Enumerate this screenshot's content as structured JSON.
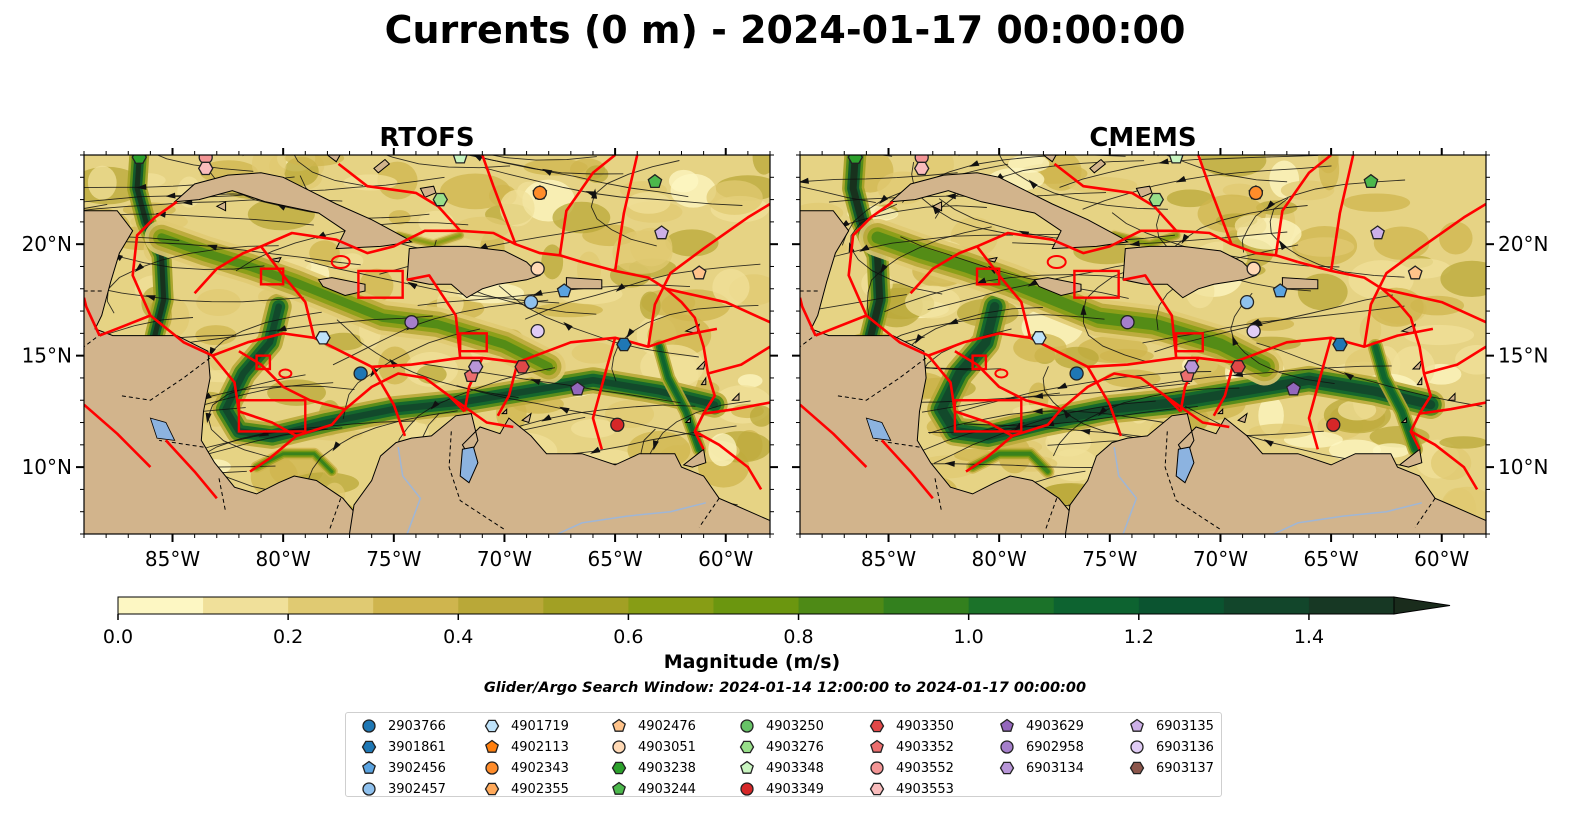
{
  "figure": {
    "title": "Currents (0 m) - 2024-01-17 00:00:00",
    "search_window": "Glider/Argo Search Window: 2024-01-14 12:00:00 to 2024-01-17 00:00:00"
  },
  "colors": {
    "land": "#d2b48c",
    "boundaries": "#ff0000",
    "water_lakes": "#8cb3e0",
    "rivers": "#9fb6d6",
    "colormap": [
      "#fdf7c3",
      "#f0e09a",
      "#e0ca72",
      "#cfb54e",
      "#b9a838",
      "#a2a024",
      "#879d15",
      "#6b960f",
      "#4e8a16",
      "#33801e",
      "#1b7229",
      "#0d6330",
      "#0b5430",
      "#12462b",
      "#173824",
      "#1a2c1c"
    ]
  },
  "maps": [
    {
      "title": "RTOFS",
      "lon_range": [
        -89,
        -58
      ],
      "lat_range": [
        7,
        24
      ],
      "lon_ticks": [
        "85°W",
        "80°W",
        "75°W",
        "70°W",
        "65°W",
        "60°W"
      ],
      "lat_ticks": [
        "10°N",
        "15°N",
        "20°N"
      ],
      "lat_labels_side": "left",
      "markers": [
        {
          "id": "2903766",
          "lon": -76.5,
          "lat": 14.2
        },
        {
          "id": "3901861",
          "lon": -64.6,
          "lat": 15.5
        },
        {
          "id": "3902456",
          "lon": -67.3,
          "lat": 17.9
        },
        {
          "id": "3902457",
          "lon": -68.8,
          "lat": 17.4
        },
        {
          "id": "4901719",
          "lon": -78.2,
          "lat": 15.8
        },
        {
          "id": "4902113",
          "lon": -68.4,
          "lat": 22.3
        },
        {
          "id": "4902343",
          "lon": -68.4,
          "lat": 22.3
        },
        {
          "id": "4902476",
          "lon": -61.2,
          "lat": 18.7
        },
        {
          "id": "4903051",
          "lon": -68.5,
          "lat": 18.9
        },
        {
          "id": "4903238",
          "lon": -86.5,
          "lat": 23.9
        },
        {
          "id": "4903244",
          "lon": -63.2,
          "lat": 22.8
        },
        {
          "id": "4903276",
          "lon": -72.9,
          "lat": 22.0
        },
        {
          "id": "4903348",
          "lon": -72.0,
          "lat": 23.9
        },
        {
          "id": "4903349",
          "lon": -64.9,
          "lat": 11.9
        },
        {
          "id": "4903350",
          "lon": -69.2,
          "lat": 14.5
        },
        {
          "id": "4903352",
          "lon": -71.5,
          "lat": 14.1
        },
        {
          "id": "4903552",
          "lon": -83.5,
          "lat": 23.9
        },
        {
          "id": "4903553",
          "lon": -83.5,
          "lat": 23.4
        },
        {
          "id": "4903629",
          "lon": -66.7,
          "lat": 13.5
        },
        {
          "id": "6902958",
          "lon": -74.2,
          "lat": 16.5
        },
        {
          "id": "6903134",
          "lon": -71.3,
          "lat": 14.5
        },
        {
          "id": "6903135",
          "lon": -62.9,
          "lat": 20.5
        },
        {
          "id": "6903136",
          "lon": -68.5,
          "lat": 16.1
        }
      ]
    },
    {
      "title": "CMEMS",
      "lon_range": [
        -89,
        -58
      ],
      "lat_range": [
        7,
        24
      ],
      "lon_ticks": [
        "85°W",
        "80°W",
        "75°W",
        "70°W",
        "65°W",
        "60°W"
      ],
      "lat_ticks": [
        "10°N",
        "15°N",
        "20°N"
      ],
      "lat_labels_side": "right",
      "markers": [
        {
          "id": "2903766",
          "lon": -76.5,
          "lat": 14.2
        },
        {
          "id": "3901861",
          "lon": -64.6,
          "lat": 15.5
        },
        {
          "id": "3902456",
          "lon": -67.3,
          "lat": 17.9
        },
        {
          "id": "3902457",
          "lon": -68.8,
          "lat": 17.4
        },
        {
          "id": "4901719",
          "lon": -78.2,
          "lat": 15.8
        },
        {
          "id": "4902113",
          "lon": -68.4,
          "lat": 22.3
        },
        {
          "id": "4902343",
          "lon": -68.4,
          "lat": 22.3
        },
        {
          "id": "4902476",
          "lon": -61.2,
          "lat": 18.7
        },
        {
          "id": "4903051",
          "lon": -68.5,
          "lat": 18.9
        },
        {
          "id": "4903238",
          "lon": -86.5,
          "lat": 23.9
        },
        {
          "id": "4903244",
          "lon": -63.2,
          "lat": 22.8
        },
        {
          "id": "4903276",
          "lon": -72.9,
          "lat": 22.0
        },
        {
          "id": "4903348",
          "lon": -72.0,
          "lat": 23.9
        },
        {
          "id": "4903349",
          "lon": -64.9,
          "lat": 11.9
        },
        {
          "id": "4903350",
          "lon": -69.2,
          "lat": 14.5
        },
        {
          "id": "4903352",
          "lon": -71.5,
          "lat": 14.1
        },
        {
          "id": "4903552",
          "lon": -83.5,
          "lat": 23.9
        },
        {
          "id": "4903553",
          "lon": -83.5,
          "lat": 23.4
        },
        {
          "id": "4903629",
          "lon": -66.7,
          "lat": 13.5
        },
        {
          "id": "6902958",
          "lon": -74.2,
          "lat": 16.5
        },
        {
          "id": "6903134",
          "lon": -71.3,
          "lat": 14.5
        },
        {
          "id": "6903135",
          "lon": -62.9,
          "lat": 20.5
        },
        {
          "id": "6903136",
          "lon": -68.5,
          "lat": 16.1
        }
      ]
    }
  ],
  "colorbar": {
    "label": "Magnitude (m/s)",
    "min": 0,
    "max": 1.5,
    "step": 0.1,
    "tick_values": [
      0,
      0.2,
      0.4,
      0.6,
      0.8,
      1.0,
      1.2,
      1.4
    ],
    "tick_labels": [
      "0.0",
      "0.2",
      "0.4",
      "0.6",
      "0.8",
      "1.0",
      "1.2",
      "1.4"
    ],
    "extend": "max"
  },
  "legend": {
    "columns": [
      [
        {
          "label": "2903766",
          "shape": "circle",
          "color": "#1f77b4"
        },
        {
          "label": "3901861",
          "shape": "hexagon",
          "color": "#1f77b4"
        },
        {
          "label": "3902456",
          "shape": "pentagon",
          "color": "#5aa3e0"
        },
        {
          "label": "3902457",
          "shape": "circle",
          "color": "#8fc1ee"
        }
      ],
      [
        {
          "label": "4901719",
          "shape": "hexagon",
          "color": "#bfe3fa"
        },
        {
          "label": "4902113",
          "shape": "pentagon",
          "color": "#ff7f0e"
        },
        {
          "label": "4902343",
          "shape": "circle",
          "color": "#ff8c2a"
        },
        {
          "label": "4902355",
          "shape": "hexagon",
          "color": "#ffa95a"
        }
      ],
      [
        {
          "label": "4902476",
          "shape": "pentagon",
          "color": "#ffc38a"
        },
        {
          "label": "4903051",
          "shape": "circle",
          "color": "#ffd9b5"
        },
        {
          "label": "4903238",
          "shape": "hexagon",
          "color": "#2ca02c"
        },
        {
          "label": "4903244",
          "shape": "pentagon",
          "color": "#4cb84c"
        }
      ],
      [
        {
          "label": "4903250",
          "shape": "circle",
          "color": "#66c266"
        },
        {
          "label": "4903276",
          "shape": "hexagon",
          "color": "#98df8a"
        },
        {
          "label": "4903348",
          "shape": "pentagon",
          "color": "#c9f5c0"
        },
        {
          "label": "4903349",
          "shape": "circle",
          "color": "#d62728"
        }
      ],
      [
        {
          "label": "4903350",
          "shape": "hexagon",
          "color": "#e04848"
        },
        {
          "label": "4903352",
          "shape": "pentagon",
          "color": "#ec6e6e"
        },
        {
          "label": "4903552",
          "shape": "circle",
          "color": "#f39595"
        },
        {
          "label": "4903553",
          "shape": "hexagon",
          "color": "#f9bcbc"
        }
      ],
      [
        {
          "label": "4903629",
          "shape": "pentagon",
          "color": "#9467bd"
        },
        {
          "label": "6902958",
          "shape": "circle",
          "color": "#a57fcb"
        },
        {
          "label": "6903134",
          "shape": "hexagon",
          "color": "#b896d8"
        }
      ],
      [
        {
          "label": "6903135",
          "shape": "pentagon",
          "color": "#cdb0e8"
        },
        {
          "label": "6903136",
          "shape": "circle",
          "color": "#e0ccf5"
        },
        {
          "label": "6903137",
          "shape": "hexagon",
          "color": "#8c564b"
        }
      ]
    ]
  }
}
